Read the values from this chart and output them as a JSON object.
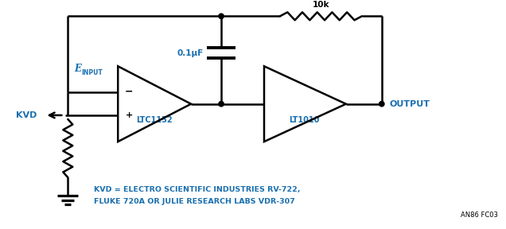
{
  "bg_color": "#ffffff",
  "line_color": "#000000",
  "label_color": "#1a6faf",
  "op_amp1_label": "LTC1152",
  "op_amp2_label": "LT1010",
  "resistor_label": "10k",
  "capacitor_label": "0.1μF",
  "output_label": "OUTPUT",
  "kvd_label": "KVD",
  "footnote1": "KVD = ELECTRO SCIENTIFIC INDUSTRIES RV-722,",
  "footnote2": "FLUKE 720A OR JULIE RESEARCH LABS VDR-307",
  "annotation": "AN86 FC03",
  "minus_label": "−",
  "plus_label": "+"
}
